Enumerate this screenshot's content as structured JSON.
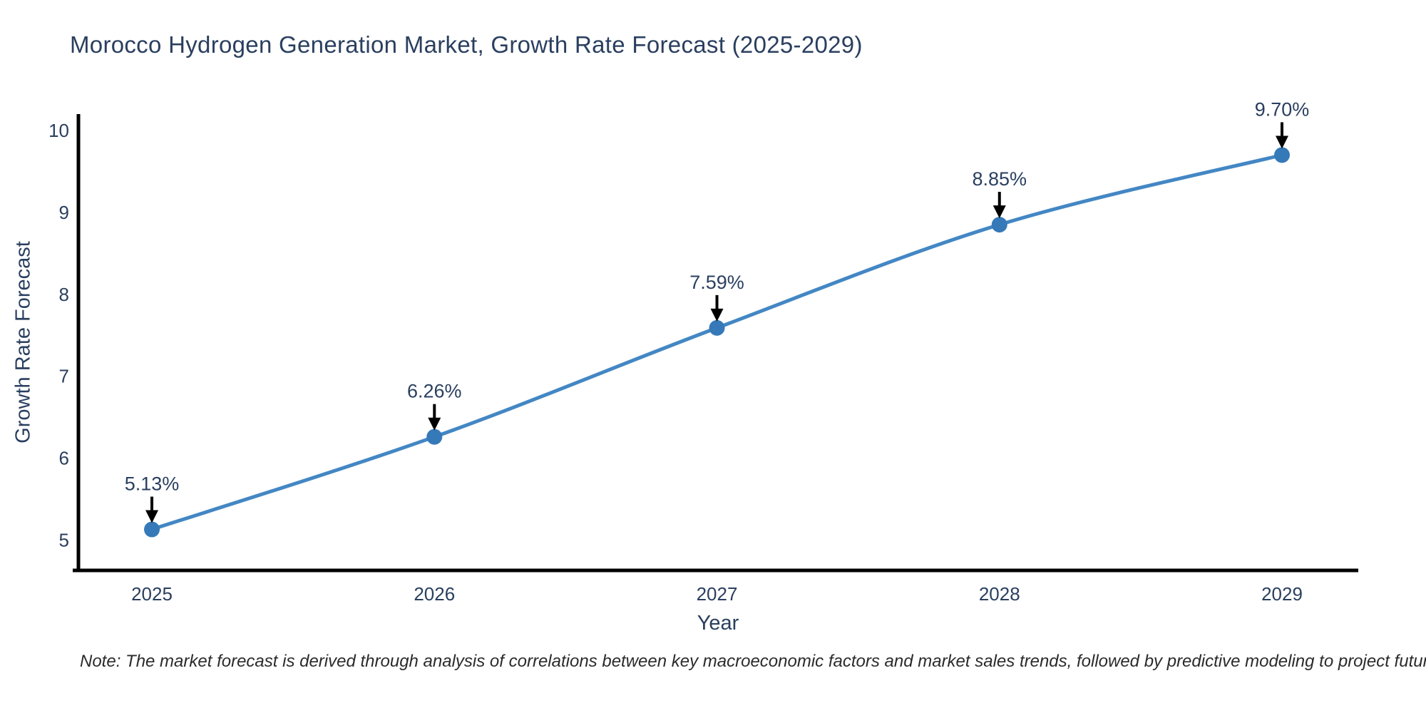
{
  "note": "Note: The market forecast is derived through analysis of correlations between key macroeconomic factors and market sales trends, followed by predictive modeling to project future sales.",
  "chart_data": {
    "type": "line",
    "title": "Morocco Hydrogen Generation Market, Growth Rate Forecast (2025-2029)",
    "xlabel": "Year",
    "ylabel": "Growth Rate Forecast",
    "x": [
      2025,
      2026,
      2027,
      2028,
      2029
    ],
    "values": [
      5.13,
      6.26,
      7.59,
      8.85,
      9.7
    ],
    "point_labels": [
      "5.13%",
      "6.26%",
      "7.59%",
      "8.85%",
      "9.70%"
    ],
    "xticks": [
      "2025",
      "2026",
      "2027",
      "2028",
      "2029"
    ],
    "yticks": [
      5,
      6,
      7,
      8,
      9,
      10
    ],
    "xlim": [
      2024.74,
      2029.27
    ],
    "ylim": [
      4.63,
      10.2
    ],
    "grid": false,
    "legend": "none",
    "line_shape": "spline",
    "colors": {
      "line": "#4387c4",
      "marker": "#3579b8",
      "axis": "#000000",
      "text": "#2a3f5f",
      "annotation_arrow": "#000000",
      "background": "#ffffff"
    }
  }
}
